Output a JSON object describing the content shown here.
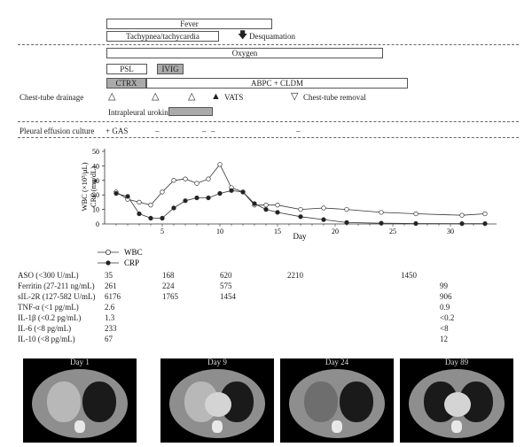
{
  "timeline": {
    "fever": "Fever",
    "tachy": "Tachypnea/tachycardia",
    "desquamation": "Desquamation",
    "oxygen": "Oxygen",
    "psl": "PSL",
    "ivig": "IVIG",
    "ctrx": "CTRX",
    "abpc": "ABPC + CLDM",
    "chest_tube": "Chest-tube drainage",
    "vats": "VATS",
    "chest_tube_removal": "Chest-tube removal",
    "urokinase": "Intrapleural urokinase",
    "culture_label": "Pleural effusion culture",
    "culture_results": [
      "+ GAS",
      "–",
      "–",
      "–",
      "–"
    ]
  },
  "chart_data": {
    "type": "line",
    "xlabel": "Day",
    "ylabel_line1": "WBC (×10³/μL)",
    "ylabel_line2": "CRP (mg/dL)",
    "xlim": [
      0,
      34
    ],
    "ylim": [
      0,
      50
    ],
    "xticks": [
      5,
      10,
      15,
      20,
      25,
      30
    ],
    "yticks": [
      0,
      10,
      20,
      30,
      40,
      50
    ],
    "series": [
      {
        "name": "WBC",
        "marker": "open",
        "x": [
          1,
          2,
          3,
          4,
          5,
          6,
          7,
          8,
          9,
          10,
          11,
          12,
          13,
          14,
          15,
          17,
          19,
          21,
          24,
          27,
          31,
          33
        ],
        "y": [
          22,
          17,
          15,
          13,
          22,
          30,
          31,
          28,
          31,
          41,
          25,
          22,
          13,
          13,
          13,
          10,
          11,
          10,
          8,
          7,
          6,
          7
        ]
      },
      {
        "name": "CRP",
        "marker": "filled",
        "x": [
          1,
          2,
          3,
          4,
          5,
          6,
          7,
          8,
          9,
          10,
          11,
          12,
          13,
          14,
          15,
          17,
          19,
          21,
          24,
          27,
          31,
          33
        ],
        "y": [
          21,
          19,
          7,
          4,
          4,
          11,
          16,
          18,
          18,
          21,
          23,
          22,
          14,
          10,
          8,
          5,
          3,
          1,
          0.5,
          0.3,
          0.2,
          0.2
        ]
      }
    ]
  },
  "legend": {
    "wbc": "WBC",
    "crp": "CRP"
  },
  "labs": [
    {
      "name": "ASO (<300 U/mL)",
      "v": [
        "35",
        "168",
        "620",
        "2210",
        "1450",
        ""
      ]
    },
    {
      "name": "Ferritin (27-211 ng/mL)",
      "v": [
        "261",
        "224",
        "575",
        "",
        "",
        "99"
      ]
    },
    {
      "name": "sIL-2R (127-582 U/mL)",
      "v": [
        "6176",
        "1765",
        "1454",
        "",
        "",
        "906"
      ]
    },
    {
      "name": "TNF-α (<1 pg/mL)",
      "v": [
        "2.6",
        "",
        "",
        "",
        "",
        "0.9"
      ]
    },
    {
      "name": "IL-1β (<0.2 pg/mL)",
      "v": [
        "1.3",
        "",
        "",
        "",
        "",
        "<0.2"
      ]
    },
    {
      "name": "IL-6 (<8 pg/mL)",
      "v": [
        "233",
        "",
        "",
        "",
        "",
        "<8"
      ]
    },
    {
      "name": "IL-10 (<8 pg/mL)",
      "v": [
        "67",
        "",
        "",
        "",
        "",
        "12"
      ]
    }
  ],
  "ct_scans": [
    "Day 1",
    "Day 9",
    "Day 24",
    "Day 89"
  ]
}
